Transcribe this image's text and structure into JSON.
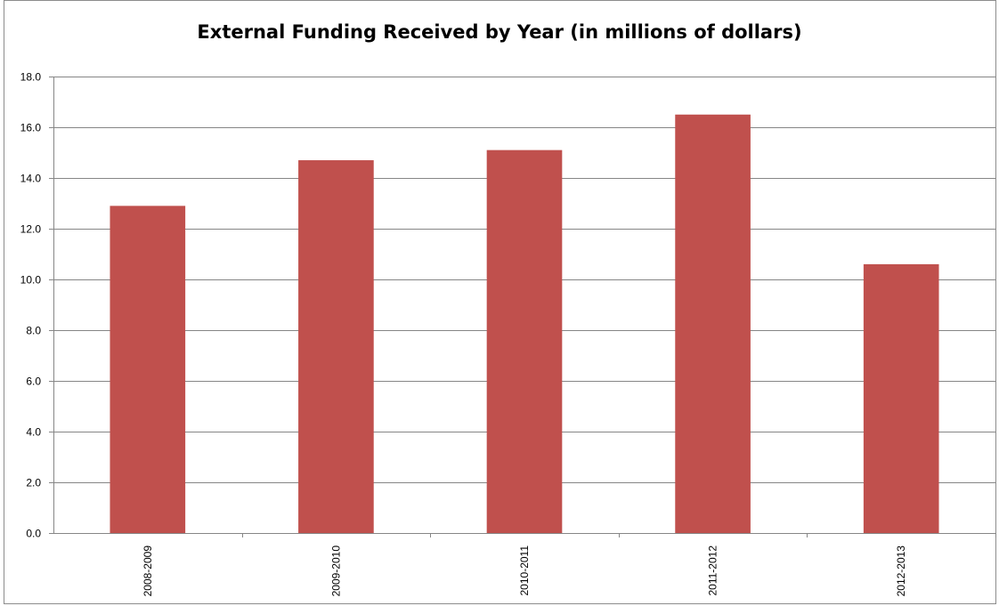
{
  "chart_data": {
    "type": "bar",
    "title": "External Funding Received by Year (in millions of dollars)",
    "xlabel": "",
    "ylabel": "",
    "categories": [
      "2008-2009",
      "2009-2010",
      "2010-2011",
      "2011-2012",
      "2012-2013"
    ],
    "values": [
      12.9,
      14.7,
      15.1,
      16.5,
      10.6
    ],
    "ylim": [
      0,
      18
    ],
    "yticks": [
      "0.0",
      "2.0",
      "4.0",
      "6.0",
      "8.0",
      "10.0",
      "12.0",
      "14.0",
      "16.0",
      "18.0"
    ],
    "grid": "horizontal",
    "legend": "none",
    "bar_color": "#C0504D",
    "grid_color": "#868686"
  }
}
